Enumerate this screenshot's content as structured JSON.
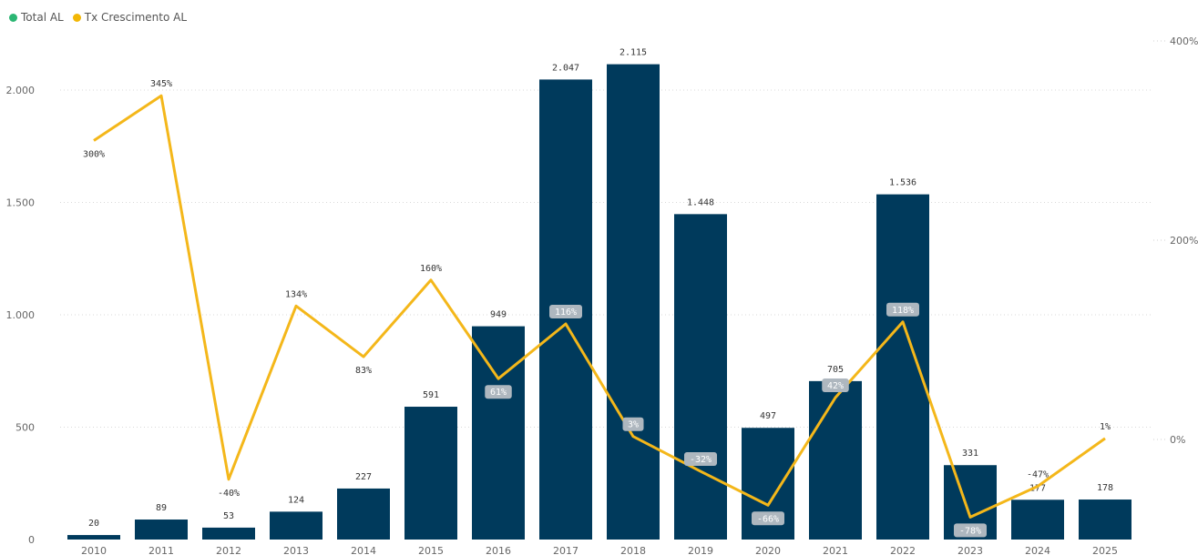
{
  "legend": {
    "items": [
      {
        "name": "Total AL",
        "color": "#2bb673"
      },
      {
        "name": "Tx Crescimento AL",
        "color": "#f2b705"
      }
    ]
  },
  "colors": {
    "bar": "#003a5c",
    "line": "#f4b71a",
    "boxed_label_bg": "#aeb7bf"
  },
  "chart_data": {
    "type": "bar+line",
    "categories": [
      "2010",
      "2011",
      "2012",
      "2013",
      "2014",
      "2015",
      "2016",
      "2017",
      "2018",
      "2019",
      "2020",
      "2021",
      "2022",
      "2023",
      "2024",
      "2025"
    ],
    "series": [
      {
        "name": "Total AL",
        "type": "bar",
        "axis": "left",
        "values": [
          20,
          89,
          53,
          124,
          227,
          591,
          949,
          2047,
          2115,
          1448,
          497,
          705,
          1536,
          331,
          177,
          178
        ],
        "labels": [
          "20",
          "89",
          "53",
          "124",
          "227",
          "591",
          "949",
          "2.047",
          "2.115",
          "1.448",
          "497",
          "705",
          "1.536",
          "331",
          "177",
          "178"
        ]
      },
      {
        "name": "Tx Crescimento AL",
        "type": "line",
        "axis": "right",
        "values": [
          300,
          345,
          -40,
          134,
          83,
          160,
          61,
          116,
          3,
          -32,
          -66,
          42,
          118,
          -78,
          -47,
          1
        ],
        "labels": [
          "300%",
          "345%",
          "-40%",
          "134%",
          "83%",
          "160%",
          "61%",
          "116%",
          "3%",
          "-32%",
          "-66%",
          "42%",
          "118%",
          "-78%",
          "-47%",
          "1%"
        ],
        "boxed": [
          false,
          false,
          false,
          false,
          false,
          false,
          true,
          true,
          true,
          true,
          true,
          true,
          true,
          true,
          false,
          false
        ]
      }
    ],
    "left_axis": {
      "ticks": [
        0,
        500,
        1000,
        1500,
        2000
      ],
      "tick_labels": [
        "0",
        "500",
        "1.000",
        "1.500",
        "2.000"
      ],
      "ylim": [
        0,
        2200
      ]
    },
    "right_axis": {
      "ticks": [
        0,
        200,
        400
      ],
      "tick_labels": [
        "0%",
        "200%",
        "400%"
      ],
      "ylim": [
        -100,
        400
      ]
    },
    "grid": true,
    "legend_position": "top-left"
  }
}
